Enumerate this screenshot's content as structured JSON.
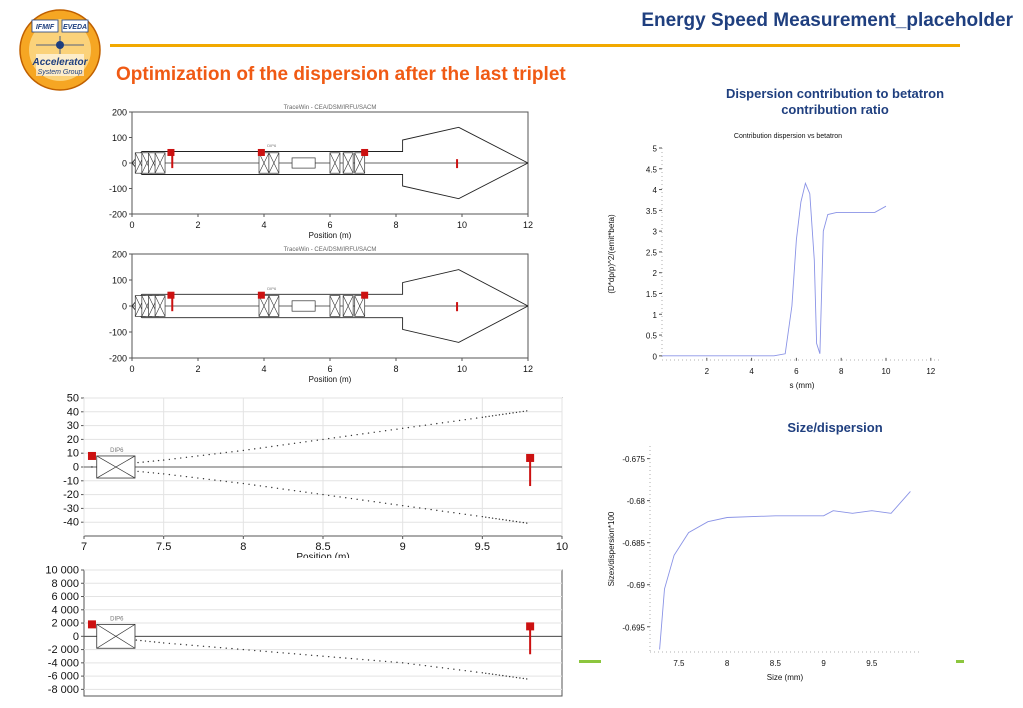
{
  "header": {
    "title": "Energy Speed Measurement_placeholder"
  },
  "slide": {
    "title": "Optimization of the dispersion after the last triplet"
  },
  "logo": {
    "top_left": "IFMIF",
    "top_right": "EVEDA",
    "middle": "Accelerator",
    "bottom": "System Group"
  },
  "colors": {
    "title_blue": "#1f3f7f",
    "title_orange": "#f05a14",
    "rule_gold": "#f2a900",
    "line_blue": "#8a93e6",
    "marker_red": "#cc1111",
    "accent_green": "#8cc63e"
  },
  "chart_data": [
    {
      "id": "envelope-top",
      "type": "line",
      "title": "TraceWin - CEA/DSM/IRFU/SACM",
      "xlabel": "Position (m)",
      "ylabel": "",
      "xlim": [
        0,
        12
      ],
      "ylim": [
        -200,
        200
      ],
      "x_ticks": [
        "0",
        "2",
        "4",
        "6",
        "8",
        "10",
        "12"
      ],
      "y_ticks": [
        "200",
        "100",
        "0",
        "-100",
        "-200"
      ],
      "element_labels": [
        "DIP6"
      ],
      "series": [
        {
          "name": "",
          "x": [
            0,
            0.3,
            1.2,
            3.9,
            7.2,
            8.2,
            8.2,
            9.9,
            12
          ],
          "y": [
            0,
            45,
            45,
            45,
            45,
            45,
            90,
            140,
            0
          ]
        },
        {
          "name": "",
          "x": [
            0,
            0.3,
            1.2,
            3.9,
            7.2,
            8.2,
            8.2,
            9.9,
            12
          ],
          "y": [
            0,
            -45,
            -45,
            -45,
            -45,
            -45,
            -90,
            -140,
            0
          ]
        }
      ]
    },
    {
      "id": "envelope-bottom",
      "type": "line",
      "title": "TraceWin - CEA/DSM/IRFU/SACM",
      "xlabel": "Position (m)",
      "ylabel": "",
      "xlim": [
        0,
        12
      ],
      "ylim": [
        -200,
        200
      ],
      "x_ticks": [
        "0",
        "2",
        "4",
        "6",
        "8",
        "10",
        "12"
      ],
      "y_ticks": [
        "200",
        "100",
        "0",
        "-100",
        "-200"
      ],
      "element_labels": [
        "DIP6"
      ],
      "series": [
        {
          "name": "",
          "x": [
            0,
            0.3,
            1.2,
            3.9,
            7.2,
            8.2,
            8.2,
            9.9,
            12
          ],
          "y": [
            0,
            45,
            45,
            45,
            45,
            45,
            90,
            140,
            0
          ]
        },
        {
          "name": "",
          "x": [
            0,
            0.3,
            1.2,
            3.9,
            7.2,
            8.2,
            8.2,
            9.9,
            12
          ],
          "y": [
            0,
            -45,
            -45,
            -45,
            -45,
            -45,
            -90,
            -140,
            0
          ]
        }
      ]
    },
    {
      "id": "zoom-envelope",
      "type": "line",
      "title": "",
      "xlabel": "Position (m)",
      "ylabel": "",
      "xlim": [
        7,
        10
      ],
      "ylim": [
        -50,
        50
      ],
      "x_ticks": [
        "7",
        "7.5",
        "8",
        "8.5",
        "9",
        "9.5",
        "10"
      ],
      "y_ticks": [
        "50",
        "40",
        "30",
        "20",
        "10",
        "0",
        "-10",
        "-20",
        "-30",
        "-40"
      ],
      "element_labels": [
        "DIP6"
      ],
      "series": [
        {
          "name": "",
          "x": [
            7.05,
            7.5,
            8,
            8.5,
            9,
            9.5,
            9.8
          ],
          "y": [
            0,
            5,
            12,
            20,
            28,
            36,
            41
          ]
        },
        {
          "name": "",
          "x": [
            7.05,
            7.5,
            8,
            8.5,
            9,
            9.5,
            9.8
          ],
          "y": [
            0,
            -5,
            -12,
            -20,
            -28,
            -36,
            -41
          ]
        }
      ]
    },
    {
      "id": "zoom-dispersion",
      "type": "scatter",
      "title": "",
      "xlabel": "",
      "ylabel": "",
      "xlim": [
        7,
        10
      ],
      "ylim": [
        -9000,
        10000
      ],
      "y_ticks": [
        "10 000",
        "8 000",
        "6 000",
        "4 000",
        "2 000",
        "0",
        "-2 000",
        "-4 000",
        "-6 000",
        "-8 000"
      ],
      "element_labels": [
        "DIP6"
      ],
      "series": [
        {
          "name": "",
          "x": [
            7.1,
            7.5,
            8,
            8.5,
            9,
            9.5,
            9.8
          ],
          "y": [
            0,
            -1000,
            -2000,
            -3000,
            -4000,
            -5500,
            -6500
          ]
        }
      ]
    },
    {
      "id": "dispersion-betatron",
      "type": "line",
      "title": "Dispersion contribution to betatron contribution ratio",
      "subtitle": "Contribution dispersion vs betatron",
      "xlabel": "s (mm)",
      "ylabel": "(D*dp/p)^2/(emit*beta)",
      "xlim": [
        0,
        12.5
      ],
      "ylim": [
        -0.1,
        5
      ],
      "x_ticks": [
        "2",
        "4",
        "6",
        "8",
        "10",
        "12"
      ],
      "y_ticks": [
        "5",
        "4.5",
        "4",
        "3.5",
        "3",
        "2.5",
        "2",
        "1.5",
        "1",
        "0.5",
        "0"
      ],
      "series": [
        {
          "name": "",
          "x": [
            0,
            5.0,
            5.5,
            5.8,
            6.0,
            6.2,
            6.4,
            6.6,
            6.8,
            6.9,
            7.05,
            7.2,
            7.4,
            7.8,
            8.5,
            9.5,
            10.0
          ],
          "y": [
            0,
            0,
            0.05,
            1.2,
            2.8,
            3.7,
            4.15,
            3.9,
            2.3,
            0.3,
            0.05,
            3.0,
            3.4,
            3.45,
            3.45,
            3.45,
            3.6
          ]
        }
      ]
    },
    {
      "id": "size-dispersion",
      "type": "line",
      "title": "Size/dispersion",
      "xlabel": "Size (mm)",
      "ylabel": "Sizex/dispersion*100",
      "xlim": [
        7.2,
        10.0
      ],
      "ylim": [
        -0.698,
        -0.6735
      ],
      "x_ticks": [
        "7.5",
        "8",
        "8.5",
        "9",
        "9.5"
      ],
      "y_ticks": [
        "-0.675",
        "-0.68",
        "-0.685",
        "-0.69",
        "-0.695"
      ],
      "series": [
        {
          "name": "",
          "x": [
            7.3,
            7.35,
            7.45,
            7.6,
            7.8,
            8.0,
            8.5,
            9.0,
            9.1,
            9.3,
            9.5,
            9.7,
            9.9
          ],
          "y": [
            -0.6977,
            -0.6905,
            -0.6865,
            -0.6838,
            -0.6825,
            -0.682,
            -0.6818,
            -0.6818,
            -0.6812,
            -0.6815,
            -0.6812,
            -0.6815,
            -0.6789
          ]
        }
      ]
    }
  ]
}
